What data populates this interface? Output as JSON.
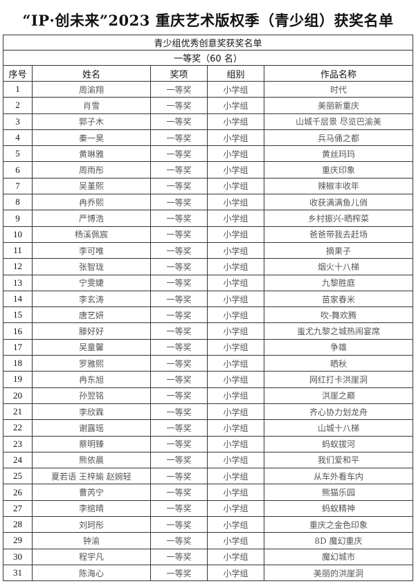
{
  "title": "“IP·创未来”2023 重庆艺术版权季（青少组）获奖名单",
  "section": "青少组优秀创意奖获奖名单",
  "tier": "一等奖（60 名）",
  "headers": [
    "序号",
    "姓名",
    "奖项",
    "组别",
    "作品名称"
  ],
  "rows": [
    [
      "1",
      "周渝翔",
      "一等奖",
      "小学组",
      "时代"
    ],
    [
      "2",
      "肖雪",
      "一等奖",
      "小学组",
      "美丽新重庆"
    ],
    [
      "3",
      "郭子木",
      "一等奖",
      "小学组",
      "山城千层景 尽览巴渝美"
    ],
    [
      "4",
      "秦一昊",
      "一等奖",
      "小学组",
      "兵马俑之都"
    ],
    [
      "5",
      "黄琳雅",
      "一等奖",
      "小学组",
      "黄丝玛玛"
    ],
    [
      "6",
      "周雨彤",
      "一等奖",
      "小学组",
      "重庆印象"
    ],
    [
      "7",
      "吴堇熙",
      "一等奖",
      "小学组",
      "辣椒丰收年"
    ],
    [
      "8",
      "冉乔熙",
      "一等奖",
      "小学组",
      "收获满满鱼儿俏"
    ],
    [
      "9",
      "严博浩",
      "一等奖",
      "小学组",
      "乡村振兴-晒榨菜"
    ],
    [
      "10",
      "杨溪佩宸",
      "一等奖",
      "小学组",
      "爸爸带我去赶场"
    ],
    [
      "11",
      "李可唯",
      "一等奖",
      "小学组",
      "摘果子"
    ],
    [
      "12",
      "张智珑",
      "一等奖",
      "小学组",
      "烟火十八梯"
    ],
    [
      "13",
      "宁雯婕",
      "一等奖",
      "小学组",
      "九黎胜庭"
    ],
    [
      "14",
      "李玄涛",
      "一等奖",
      "小学组",
      "苗家春米"
    ],
    [
      "15",
      "唐艺妍",
      "一等奖",
      "小学组",
      "吹-舞欢腾"
    ],
    [
      "16",
      "滕好好",
      "一等奖",
      "小学组",
      "蚩尤九黎之城热闹宴席"
    ],
    [
      "17",
      "吴童馨",
      "一等奖",
      "小学组",
      "争雄"
    ],
    [
      "18",
      "罗雅熙",
      "一等奖",
      "小学组",
      "晒秋"
    ],
    [
      "19",
      "冉东旭",
      "一等奖",
      "小学组",
      "网红打卡洪崖洞"
    ],
    [
      "20",
      "孙翌铭",
      "一等奖",
      "小学组",
      "洪崖之巅"
    ],
    [
      "21",
      "李欣霖",
      "一等奖",
      "小学组",
      "齐心协力划龙舟"
    ],
    [
      "22",
      "谢露瑶",
      "一等奖",
      "小学组",
      "山城十八梯"
    ],
    [
      "23",
      "蔡明臻",
      "一等奖",
      "小学组",
      "蚂蚁拔河"
    ],
    [
      "24",
      "熊依晨",
      "一等奖",
      "小学组",
      "我们爱和平"
    ],
    [
      "25",
      "夏若语 王梓瑜 赵婉轻",
      "一等奖",
      "小学组",
      "从车外看车内"
    ],
    [
      "26",
      "曹芮宁",
      "一等奖",
      "小学组",
      "熊猫乐园"
    ],
    [
      "27",
      "李绾晴",
      "一等奖",
      "小学组",
      "蚂蚁精神"
    ],
    [
      "28",
      "刘珂彤",
      "一等奖",
      "小学组",
      "重庆之金色印象"
    ],
    [
      "29",
      "钟渝",
      "一等奖",
      "小学组",
      "8D 魔幻重庆"
    ],
    [
      "30",
      "程宇凡",
      "一等奖",
      "小学组",
      "魔幻城市"
    ],
    [
      "31",
      "陈海心",
      "一等奖",
      "小学组",
      "美丽的洪崖洞"
    ]
  ]
}
